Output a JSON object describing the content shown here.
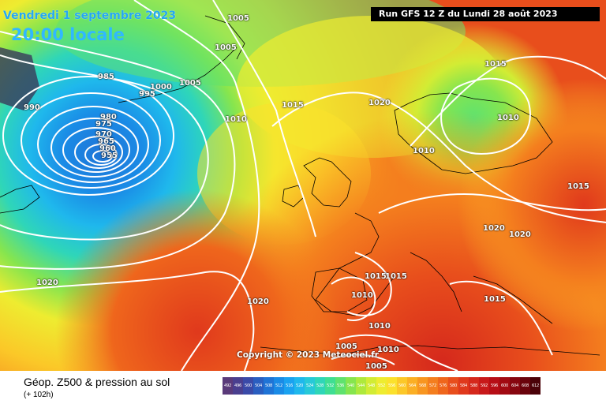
{
  "header": {
    "date": "Vendredi 1 septembre 2023",
    "time": "20:00 locale",
    "run": "Run GFS 12 Z du Lundi 28 août 2023"
  },
  "copyright": "Copyright © 2023 Meteociel.fr",
  "footer": {
    "title": "Géop. Z500 & pression au sol",
    "subtitle": "(+ 102h)"
  },
  "isobar_labels": [
    {
      "text": "1005"
    },
    {
      "text": "1005"
    },
    {
      "text": "985"
    },
    {
      "text": "990"
    },
    {
      "text": "1000"
    },
    {
      "text": "995"
    },
    {
      "text": "1005"
    },
    {
      "text": "980"
    },
    {
      "text": "975"
    },
    {
      "text": "970"
    },
    {
      "text": "965"
    },
    {
      "text": "960"
    },
    {
      "text": "955"
    },
    {
      "text": "1010"
    },
    {
      "text": "1015"
    },
    {
      "text": "1020"
    },
    {
      "text": "1015"
    },
    {
      "text": "1010"
    },
    {
      "text": "1010"
    },
    {
      "text": "1015"
    },
    {
      "text": "1020"
    },
    {
      "text": "1020"
    },
    {
      "text": "1020"
    },
    {
      "text": "1020"
    },
    {
      "text": "1015"
    },
    {
      "text": "1015"
    },
    {
      "text": "1010"
    },
    {
      "text": "1015"
    },
    {
      "text": "1010"
    },
    {
      "text": "1010"
    },
    {
      "text": "1005"
    },
    {
      "text": "1005"
    }
  ],
  "colorbar": {
    "values": [
      "492",
      "496",
      "500",
      "504",
      "508",
      "512",
      "516",
      "520",
      "524",
      "528",
      "532",
      "536",
      "540",
      "544",
      "548",
      "552",
      "556",
      "560",
      "564",
      "568",
      "572",
      "576",
      "580",
      "584",
      "588",
      "592",
      "596",
      "600",
      "604",
      "608",
      "612"
    ],
    "colors": [
      "#5a3a7a",
      "#4a3f8f",
      "#3a4aa8",
      "#2a5ec0",
      "#1f74d6",
      "#1a8be6",
      "#1aa2f0",
      "#1fb8ec",
      "#27c9d8",
      "#2fd6b8",
      "#3fde93",
      "#5fe26f",
      "#86e54e",
      "#aee93c",
      "#d2ec34",
      "#eeec30",
      "#fbe12c",
      "#fcc828",
      "#fbaf24",
      "#f89620",
      "#f47e1e",
      "#ef661c",
      "#e84e1c",
      "#e0391c",
      "#d5281c",
      "#c8191a",
      "#b70e16",
      "#a20a12",
      "#870610",
      "#6a030c",
      "#4a0208"
    ]
  }
}
